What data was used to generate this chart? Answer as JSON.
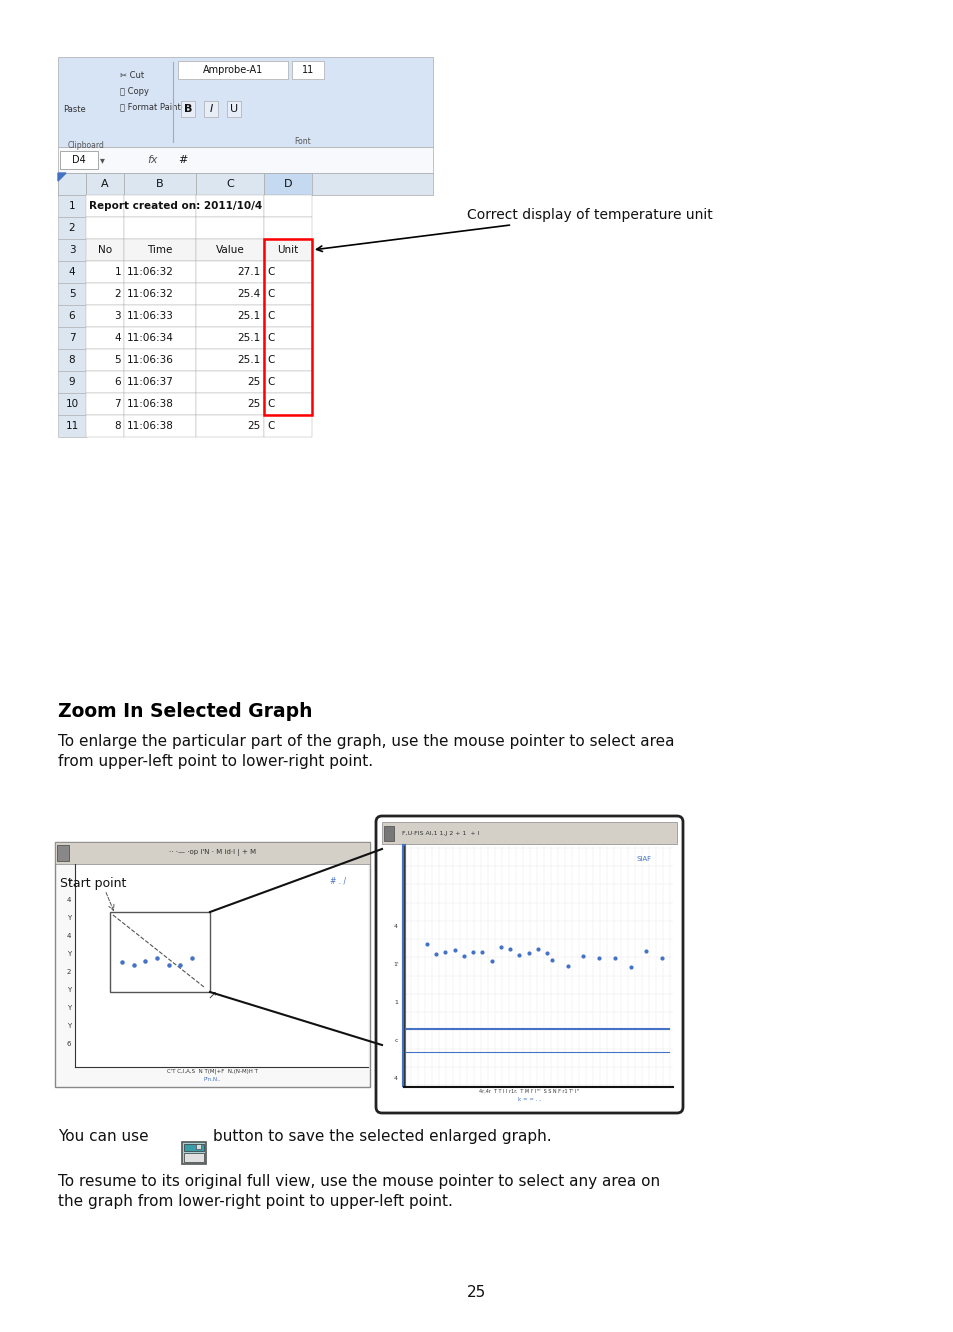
{
  "bg_color": "#ffffff",
  "page_number": "25",
  "section_title": "Zoom In Selected Graph",
  "section_body_1": "To enlarge the particular part of the graph, use the mouse pointer to select area\nfrom upper-left point to lower-right point.",
  "section_body_3": "To resume to its original full view, use the mouse pointer to select any area on\nthe graph from lower-right point to upper-left point.",
  "annotation_text": "Correct display of temperature unit",
  "start_point_label": "Start point",
  "excel": {
    "toolbar_bg": "#d6e4f5",
    "col_header_bg": "#dce6f1",
    "row_header_bg": "#dce6f1",
    "cell_bg": "#ffffff",
    "highlight_color": "#ff0000",
    "grid_color": "#aaaaaa",
    "title_row": "Report created on: 2011/10/4",
    "headers": [
      "No",
      "Time",
      "Value",
      "Unit"
    ],
    "rows": [
      [
        "1",
        "11:06:32",
        "27.1",
        "C"
      ],
      [
        "2",
        "11:06:32",
        "25.4",
        "C"
      ],
      [
        "3",
        "11:06:33",
        "25.1",
        "C"
      ],
      [
        "4",
        "11:06:34",
        "25.1",
        "C"
      ],
      [
        "5",
        "11:06:36",
        "25.1",
        "C"
      ],
      [
        "6",
        "11:06:37",
        "25",
        "C"
      ],
      [
        "7",
        "11:06:38",
        "25",
        "C"
      ],
      [
        "8",
        "11:06:38",
        "25",
        "C"
      ]
    ],
    "col_labels": [
      "A",
      "B",
      "C",
      "D"
    ]
  }
}
